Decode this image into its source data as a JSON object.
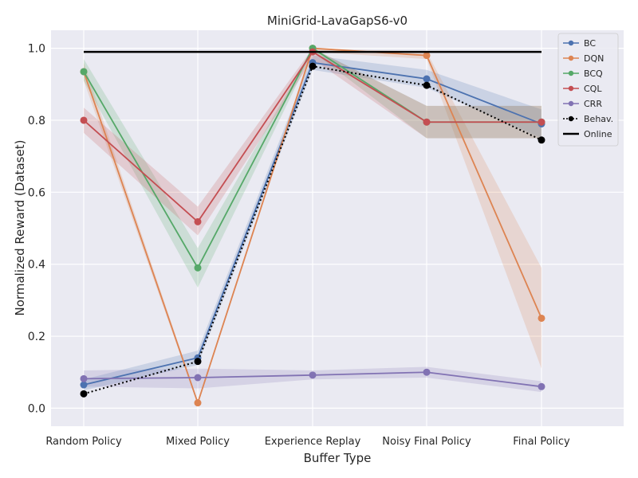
{
  "chart_data": {
    "type": "line",
    "title": "MiniGrid-LavaGapS6-v0",
    "xlabel": "Buffer Type",
    "ylabel": "Normalized Reward (Dataset)",
    "categories": [
      "Random Policy",
      "Mixed Policy",
      "Experience Replay",
      "Noisy Final Policy",
      "Final Policy"
    ],
    "ylim": [
      -0.05,
      1.05
    ],
    "yticks": [
      "0.0",
      "0.2",
      "0.4",
      "0.6",
      "0.8",
      "1.0"
    ],
    "ytick_values": [
      0.0,
      0.2,
      0.4,
      0.6,
      0.8,
      1.0
    ],
    "grid": true,
    "legend_position": "top-right",
    "series": [
      {
        "name": "BC",
        "color": "#4c72b0",
        "style": "solid",
        "values": [
          0.065,
          0.14,
          0.96,
          0.915,
          0.79
        ],
        "lower": [
          0.05,
          0.12,
          0.94,
          0.89,
          0.75
        ],
        "upper": [
          0.08,
          0.16,
          0.98,
          0.94,
          0.83
        ]
      },
      {
        "name": "DQN",
        "color": "#dd8452",
        "style": "solid",
        "values": [
          0.935,
          0.015,
          1.0,
          0.98,
          0.25
        ],
        "lower": [
          0.91,
          0.01,
          0.99,
          0.97,
          0.11
        ],
        "upper": [
          0.96,
          0.02,
          1.0,
          0.99,
          0.39
        ]
      },
      {
        "name": "BCQ",
        "color": "#55a868",
        "style": "solid",
        "values": [
          0.935,
          0.39,
          1.0,
          0.795,
          0.795
        ],
        "lower": [
          0.91,
          0.335,
          0.99,
          0.75,
          0.75
        ],
        "upper": [
          0.97,
          0.445,
          1.0,
          0.84,
          0.84
        ]
      },
      {
        "name": "CQL",
        "color": "#c44e52",
        "style": "solid",
        "values": [
          0.8,
          0.518,
          0.99,
          0.795,
          0.795
        ],
        "lower": [
          0.765,
          0.48,
          0.97,
          0.75,
          0.75
        ],
        "upper": [
          0.835,
          0.56,
          1.0,
          0.84,
          0.84
        ]
      },
      {
        "name": "CRR",
        "color": "#8172b3",
        "style": "solid",
        "values": [
          0.082,
          0.085,
          0.092,
          0.1,
          0.06
        ],
        "lower": [
          0.06,
          0.055,
          0.08,
          0.085,
          0.045
        ],
        "upper": [
          0.105,
          0.11,
          0.105,
          0.115,
          0.075
        ]
      },
      {
        "name": "Behav.",
        "color": "#000000",
        "style": "dotted",
        "values": [
          0.04,
          0.13,
          0.95,
          0.897,
          0.745
        ]
      },
      {
        "name": "Online",
        "color": "#000000",
        "style": "solid-nomarker",
        "values": [
          0.99,
          0.99,
          0.99,
          0.99,
          0.99
        ]
      }
    ]
  }
}
